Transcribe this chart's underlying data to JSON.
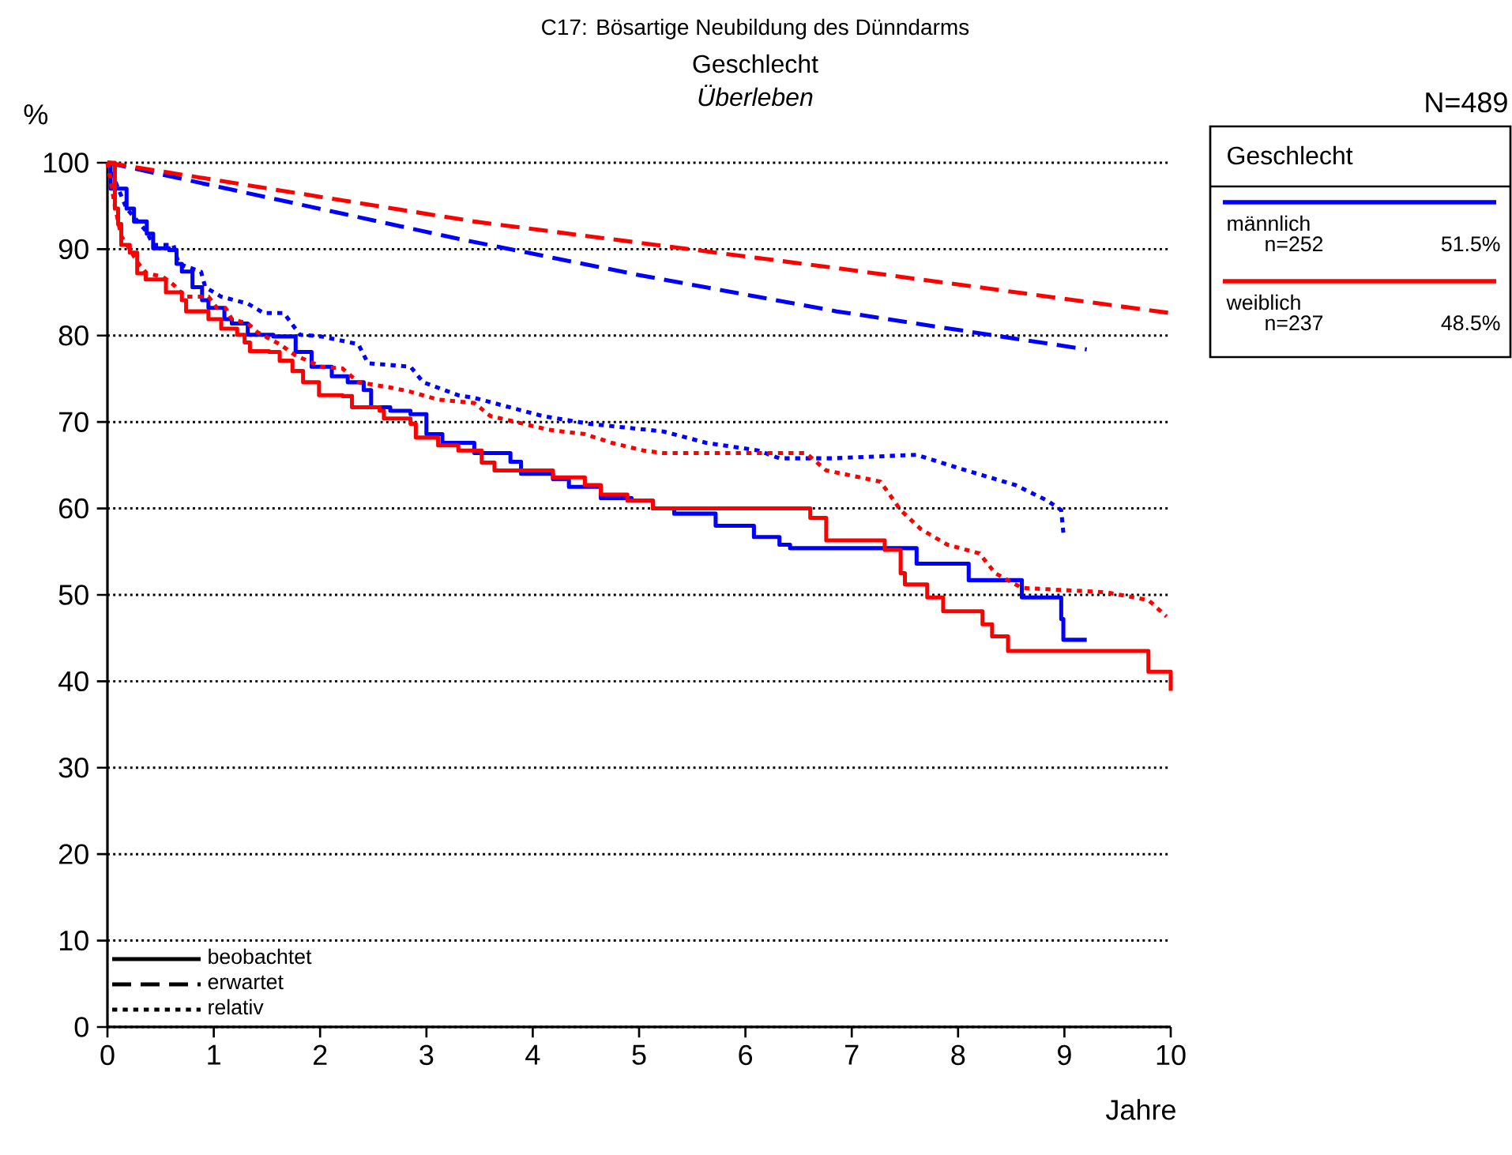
{
  "chart_data": {
    "type": "line",
    "title": "C17: Bösartige Neubildung des Dünndarms",
    "subtitle": "Geschlecht",
    "xlabel": "Jahre",
    "ylabel": "%",
    "legend_title": "Geschlecht",
    "legend": "right",
    "grid": "y",
    "xlim": [
      0,
      10
    ],
    "ylim": [
      0,
      100
    ],
    "xticks": [
      0,
      1,
      2,
      3,
      4,
      5,
      6,
      7,
      8,
      9,
      10
    ],
    "yticks": [
      0,
      10,
      20,
      30,
      40,
      50,
      60,
      70,
      80,
      90,
      100
    ],
    "annotations": [
      "Überleben",
      "N=489",
      "n=252",
      "51.5%",
      "n=237",
      "48.5%",
      "beobachtet",
      "erwartet",
      "relativ"
    ],
    "series": [
      {
        "name": "männlich",
        "color": "#0000ff",
        "type": "step",
        "line_style": "solid",
        "x": [
          0,
          0.03,
          0.18,
          0.25,
          0.37,
          0.43,
          0.58,
          0.65,
          0.7,
          0.8,
          0.89,
          0.95,
          1.1,
          1.17,
          1.32,
          1.56,
          1.77,
          1.92,
          2.11,
          2.26,
          2.41,
          2.48,
          2.66,
          2.85,
          3.0,
          3.15,
          3.45,
          3.79,
          3.89,
          4.19,
          4.34,
          4.64,
          4.93,
          5.13,
          5.33,
          5.72,
          6.08,
          6.32,
          6.42,
          7.61,
          8.1,
          8.6,
          8.97,
          8.99,
          9.21
        ],
        "values": [
          100,
          97,
          94.7,
          93.2,
          91.8,
          90.1,
          89.9,
          88.3,
          87.4,
          85.6,
          84.1,
          83.2,
          81.9,
          81.4,
          80.1,
          79.9,
          78.1,
          76.4,
          75.3,
          74.6,
          73.7,
          71.7,
          71.3,
          70.9,
          68.6,
          67.6,
          66.4,
          65.4,
          64,
          63.4,
          62.5,
          61.2,
          60.9,
          60,
          59.4,
          58,
          56.7,
          55.8,
          55.4,
          53.6,
          51.7,
          49.7,
          47.2,
          44.8,
          44.8
        ]
      },
      {
        "color": "#0000ff",
        "type": "line",
        "line_style": "dashed",
        "x": [
          0,
          1.5,
          3.3,
          5,
          6.86,
          8.4,
          9.21
        ],
        "values": [
          100,
          96,
          91.2,
          87,
          82.8,
          79.9,
          78.4
        ]
      },
      {
        "color": "#0000ff",
        "type": "line",
        "line_style": "dotted",
        "x": [
          0,
          0.18,
          0.37,
          0.43,
          0.62,
          0.67,
          0.88,
          0.92,
          1.07,
          1.32,
          1.47,
          1.66,
          1.81,
          2.01,
          2.36,
          2.45,
          2.85,
          2.97,
          3.3,
          3.45,
          4.09,
          4.53,
          5.23,
          5.63,
          6.12,
          6.32,
          6.82,
          7.61,
          8.05,
          8.54,
          8.84,
          8.97,
          8.99
        ],
        "values": [
          100,
          94.7,
          92,
          90.5,
          90.5,
          88.3,
          87.4,
          85.6,
          84.5,
          83.7,
          82.6,
          82.6,
          80.1,
          79.9,
          79,
          76.8,
          76.4,
          74.6,
          73.1,
          72.8,
          70.7,
          69.8,
          68.9,
          67.6,
          66.7,
          65.8,
          65.8,
          66.2,
          64.5,
          62.7,
          60.9,
          59.8,
          57.2
        ]
      },
      {
        "name": "weiblich",
        "color": "#ff0000",
        "type": "step",
        "line_style": "solid",
        "x": [
          0,
          0.07,
          0.1,
          0.13,
          0.21,
          0.28,
          0.36,
          0.55,
          0.7,
          0.74,
          0.95,
          1.07,
          1.22,
          1.29,
          1.34,
          1.52,
          1.62,
          1.74,
          1.84,
          1.99,
          2.21,
          2.3,
          2.56,
          2.6,
          2.85,
          2.9,
          3.11,
          3.3,
          3.52,
          3.64,
          4.19,
          4.49,
          4.64,
          4.89,
          5.13,
          6.61,
          6.76,
          7.31,
          7.46,
          7.5,
          7.71,
          7.86,
          8.23,
          8.32,
          8.47,
          9.79,
          10.0
        ],
        "values": [
          100,
          94.7,
          92.9,
          90.5,
          89.6,
          87.2,
          86.5,
          85,
          84.1,
          82.8,
          81.9,
          80.8,
          80.1,
          79.2,
          78.2,
          78.1,
          77.1,
          75.9,
          74.6,
          73.1,
          73,
          71.7,
          71.3,
          70.4,
          69.8,
          68.2,
          67.3,
          66.7,
          65.3,
          64.4,
          63.6,
          62.7,
          61.6,
          60.9,
          60,
          58.9,
          56.3,
          55.2,
          52.5,
          51.2,
          49.7,
          48.1,
          46.6,
          45.2,
          43.5,
          41.1,
          38.9
        ]
      },
      {
        "color": "#ff0000",
        "type": "line",
        "line_style": "dashed",
        "x": [
          0,
          3.45,
          6.86,
          10
        ],
        "values": [
          100,
          93.2,
          87.8,
          82.6
        ]
      },
      {
        "color": "#ff0000",
        "type": "line",
        "line_style": "dotted",
        "x": [
          0,
          0.07,
          0.13,
          0.21,
          0.28,
          0.37,
          0.52,
          0.62,
          0.73,
          0.95,
          1.03,
          1.11,
          1.17,
          1.32,
          1.41,
          1.62,
          1.77,
          2.01,
          2.21,
          2.36,
          2.66,
          2.85,
          3.11,
          3.45,
          3.6,
          4.15,
          4.49,
          4.74,
          5.04,
          5.23,
          6.57,
          6.76,
          7.27,
          7.46,
          7.65,
          7.9,
          8.2,
          8.35,
          8.6,
          9.39,
          9.79,
          9.96
        ],
        "values": [
          100,
          95,
          91.5,
          90,
          88.5,
          87.2,
          86.8,
          85.9,
          84.5,
          84.5,
          83.2,
          83.2,
          81.9,
          81.4,
          80.4,
          79,
          77.7,
          76.4,
          76.2,
          74.6,
          74,
          73.5,
          72.6,
          72.2,
          70.7,
          69.1,
          68.6,
          67.6,
          66.7,
          66.4,
          66.4,
          64.4,
          63.1,
          59.8,
          57.6,
          55.8,
          54.8,
          52.5,
          50.8,
          50.3,
          49.4,
          47.5
        ]
      }
    ]
  }
}
